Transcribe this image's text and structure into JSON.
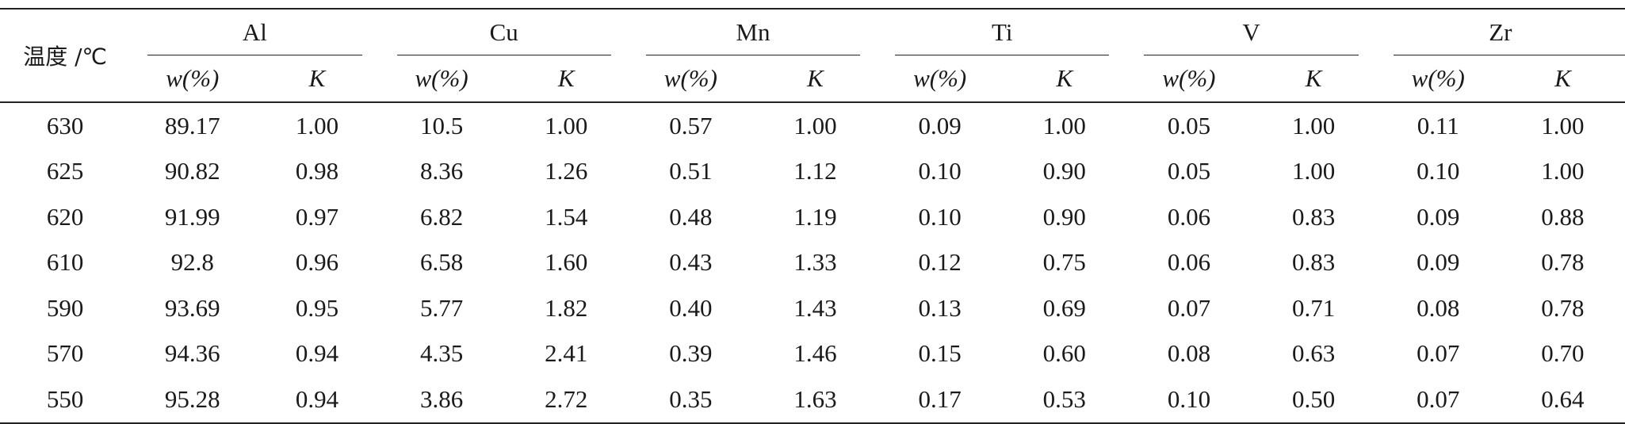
{
  "table": {
    "temp_header": "温度 /℃",
    "elements": [
      "Al",
      "Cu",
      "Mn",
      "Ti",
      "V",
      "Zr"
    ],
    "sub_w": "w(%)",
    "sub_k": "K",
    "rows": [
      {
        "temp": "630",
        "vals": [
          "89.17",
          "1.00",
          "10.5",
          "1.00",
          "0.57",
          "1.00",
          "0.09",
          "1.00",
          "0.05",
          "1.00",
          "0.11",
          "1.00"
        ]
      },
      {
        "temp": "625",
        "vals": [
          "90.82",
          "0.98",
          "8.36",
          "1.26",
          "0.51",
          "1.12",
          "0.10",
          "0.90",
          "0.05",
          "1.00",
          "0.10",
          "1.00"
        ]
      },
      {
        "temp": "620",
        "vals": [
          "91.99",
          "0.97",
          "6.82",
          "1.54",
          "0.48",
          "1.19",
          "0.10",
          "0.90",
          "0.06",
          "0.83",
          "0.09",
          "0.88"
        ]
      },
      {
        "temp": "610",
        "vals": [
          "92.8",
          "0.96",
          "6.58",
          "1.60",
          "0.43",
          "1.33",
          "0.12",
          "0.75",
          "0.06",
          "0.83",
          "0.09",
          "0.78"
        ]
      },
      {
        "temp": "590",
        "vals": [
          "93.69",
          "0.95",
          "5.77",
          "1.82",
          "0.40",
          "1.43",
          "0.13",
          "0.69",
          "0.07",
          "0.71",
          "0.08",
          "0.78"
        ]
      },
      {
        "temp": "570",
        "vals": [
          "94.36",
          "0.94",
          "4.35",
          "2.41",
          "0.39",
          "1.46",
          "0.15",
          "0.60",
          "0.08",
          "0.63",
          "0.07",
          "0.70"
        ]
      },
      {
        "temp": "550",
        "vals": [
          "95.28",
          "0.94",
          "3.86",
          "2.72",
          "0.35",
          "1.63",
          "0.17",
          "0.53",
          "0.10",
          "0.50",
          "0.07",
          "0.64"
        ]
      }
    ]
  }
}
